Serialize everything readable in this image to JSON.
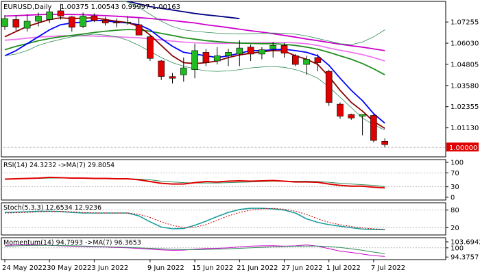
{
  "chart_data": [
    {
      "type": "candlestick",
      "panel": "price",
      "symbol_label": "EURUSD,Daily",
      "ohlc_label": "1.00375 1.00543 0.99997 1.00163",
      "current_price_label": "1.00000",
      "ylim": [
        0.9945,
        1.0845
      ],
      "y_ticks": [
        "1.07255",
        "1.06030",
        "1.04805",
        "1.03580",
        "1.02355",
        "1.01130",
        "1.00000"
      ],
      "candles": [
        {
          "o": 1.07,
          "h": 1.0765,
          "l": 1.068,
          "c": 1.0745
        },
        {
          "o": 1.074,
          "h": 1.0765,
          "l": 1.0675,
          "c": 1.0695
        },
        {
          "o": 1.069,
          "h": 1.077,
          "l": 1.067,
          "c": 1.073
        },
        {
          "o": 1.073,
          "h": 1.078,
          "l": 1.07,
          "c": 1.076
        },
        {
          "o": 1.074,
          "h": 1.08,
          "l": 1.072,
          "c": 1.0785
        },
        {
          "o": 1.079,
          "h": 1.083,
          "l": 1.074,
          "c": 1.076
        },
        {
          "o": 1.0755,
          "h": 1.076,
          "l": 1.067,
          "c": 1.0695
        },
        {
          "o": 1.07,
          "h": 1.078,
          "l": 1.069,
          "c": 1.076
        },
        {
          "o": 1.076,
          "h": 1.0775,
          "l": 1.0725,
          "c": 1.0735
        },
        {
          "o": 1.0735,
          "h": 1.0755,
          "l": 1.0705,
          "c": 1.072
        },
        {
          "o": 1.0725,
          "h": 1.0745,
          "l": 1.0695,
          "c": 1.072
        },
        {
          "o": 1.072,
          "h": 1.076,
          "l": 1.071,
          "c": 1.0725
        },
        {
          "o": 1.071,
          "h": 1.075,
          "l": 1.065,
          "c": 1.065
        },
        {
          "o": 1.064,
          "h": 1.0645,
          "l": 1.05,
          "c": 1.0515
        },
        {
          "o": 1.05,
          "h": 1.0505,
          "l": 1.039,
          "c": 1.041
        },
        {
          "o": 1.041,
          "h": 1.043,
          "l": 1.037,
          "c": 1.04
        },
        {
          "o": 1.042,
          "h": 1.052,
          "l": 1.038,
          "c": 1.046
        },
        {
          "o": 1.045,
          "h": 1.06,
          "l": 1.04,
          "c": 1.056
        },
        {
          "o": 1.055,
          "h": 1.057,
          "l": 1.047,
          "c": 1.049
        },
        {
          "o": 1.05,
          "h": 1.058,
          "l": 1.048,
          "c": 1.053
        },
        {
          "o": 1.053,
          "h": 1.057,
          "l": 1.047,
          "c": 1.055
        },
        {
          "o": 1.054,
          "h": 1.062,
          "l": 1.047,
          "c": 1.0575
        },
        {
          "o": 1.058,
          "h": 1.0595,
          "l": 1.05,
          "c": 1.054
        },
        {
          "o": 1.054,
          "h": 1.058,
          "l": 1.051,
          "c": 1.0565
        },
        {
          "o": 1.057,
          "h": 1.061,
          "l": 1.052,
          "c": 1.059
        },
        {
          "o": 1.059,
          "h": 1.0605,
          "l": 1.052,
          "c": 1.0545
        },
        {
          "o": 1.053,
          "h": 1.054,
          "l": 1.047,
          "c": 1.048
        },
        {
          "o": 1.048,
          "h": 1.053,
          "l": 1.042,
          "c": 1.051
        },
        {
          "o": 1.052,
          "h": 1.054,
          "l": 1.044,
          "c": 1.049
        },
        {
          "o": 1.044,
          "h": 1.045,
          "l": 1.024,
          "c": 1.026
        },
        {
          "o": 1.025,
          "h": 1.026,
          "l": 1.0165,
          "c": 1.018
        },
        {
          "o": 1.019,
          "h": 1.0195,
          "l": 1.016,
          "c": 1.017
        },
        {
          "o": 1.018,
          "h": 1.019,
          "l": 1.007,
          "c": 1.019
        },
        {
          "o": 1.0185,
          "h": 1.019,
          "l": 1.003,
          "c": 1.004
        },
        {
          "o": 1.0035,
          "h": 1.0052,
          "l": 0.99997,
          "c": 1.0016
        }
      ],
      "moving_averages": [
        {
          "color": "#000080",
          "values": [
            1.1,
            1.099,
            1.0978,
            1.0965,
            1.095,
            1.0935,
            1.092,
            1.0905,
            1.089,
            1.0875,
            1.086,
            1.0845,
            1.083,
            1.0815,
            1.0805,
            1.0795,
            1.0785,
            1.0775,
            1.0767,
            1.076,
            1.0753,
            1.0745
          ]
        },
        {
          "color": "#cc00cc",
          "values": [
            1.076,
            1.0762,
            1.0765,
            1.0768,
            1.077,
            1.077,
            1.0769,
            1.0768,
            1.0765,
            1.0762,
            1.0759,
            1.0755,
            1.0751,
            1.0746,
            1.074,
            1.0734,
            1.0727,
            1.072,
            1.071,
            1.0702,
            1.0693,
            1.0684,
            1.0675,
            1.0667,
            1.0658,
            1.0648,
            1.0638,
            1.0627,
            1.0618,
            1.0607,
            1.0597,
            1.0588,
            1.058,
            1.057,
            1.056
          ]
        },
        {
          "color": "#ee77ee",
          "values": [
            1.062,
            1.0625,
            1.0632,
            1.0638,
            1.0642,
            1.0645,
            1.0646,
            1.0646,
            1.0644,
            1.0642,
            1.064,
            1.0637,
            1.0634,
            1.0628,
            1.0622,
            1.0615,
            1.0609,
            1.0605,
            1.0603,
            1.0602,
            1.0602,
            1.0603,
            1.0604,
            1.0606,
            1.0607,
            1.0607,
            1.0605,
            1.06,
            1.059,
            1.0575,
            1.0562,
            1.055,
            1.0537,
            1.052,
            1.05
          ]
        },
        {
          "color": "#1f8f1f",
          "values": [
            1.0565,
            1.0585,
            1.06,
            1.0617,
            1.063,
            1.064,
            1.0648,
            1.0656,
            1.0665,
            1.0672,
            1.0678,
            1.0682,
            1.068,
            1.0672,
            1.066,
            1.0648,
            1.0635,
            1.0626,
            1.0618,
            1.0612,
            1.0607,
            1.0604,
            1.0602,
            1.06,
            1.06,
            1.0597,
            1.059,
            1.058,
            1.0568,
            1.055,
            1.053,
            1.051,
            1.0485,
            1.0455,
            1.042
          ]
        },
        {
          "color": "#0000ff",
          "values": [
            1.053,
            1.056,
            1.06,
            1.064,
            1.068,
            1.071,
            1.072,
            1.0725,
            1.0735,
            1.0733,
            1.0725,
            1.072,
            1.071,
            1.068,
            1.063,
            1.0585,
            1.055,
            1.054,
            1.053,
            1.052,
            1.053,
            1.0545,
            1.056,
            1.056,
            1.0565,
            1.0568,
            1.056,
            1.055,
            1.053,
            1.0475,
            1.04,
            1.033,
            1.027,
            1.0195,
            1.014
          ]
        },
        {
          "color": "#8b0000",
          "values": [
            1.064,
            1.067,
            1.07,
            1.072,
            1.074,
            1.075,
            1.0745,
            1.0748,
            1.075,
            1.074,
            1.073,
            1.0722,
            1.07,
            1.065,
            1.059,
            1.053,
            1.049,
            1.0485,
            1.049,
            1.05,
            1.052,
            1.0535,
            1.0545,
            1.0553,
            1.056,
            1.0558,
            1.053,
            1.051,
            1.048,
            1.041,
            1.033,
            1.026,
            1.021,
            1.015,
            1.011
          ]
        },
        {
          "color": "#2e8b57",
          "values": [
            1.089,
            1.09,
            1.092,
            1.0935,
            1.094,
            1.093,
            1.091,
            1.09,
            1.089,
            1.087,
            1.086,
            1.084,
            1.081,
            1.077,
            1.073,
            1.07,
            1.068,
            1.0672,
            1.0666,
            1.0661,
            1.0658,
            1.0656,
            1.0658,
            1.066,
            1.0662,
            1.066,
            1.0655,
            1.0645,
            1.063,
            1.0615,
            1.06,
            1.0595,
            1.061,
            1.064,
            1.068
          ]
        },
        {
          "color": "#2e8b57",
          "values": [
            1.053,
            1.054,
            1.056,
            1.059,
            1.061,
            1.0625,
            1.064,
            1.0648,
            1.0655,
            1.065,
            1.064,
            1.062,
            1.059,
            1.0555,
            1.052,
            1.049,
            1.047,
            1.0455,
            1.0442,
            1.044,
            1.0442,
            1.045,
            1.046,
            1.0465,
            1.0468,
            1.0463,
            1.045,
            1.043,
            1.04,
            1.035,
            1.029,
            1.023,
            1.017,
            1.013,
            1.01
          ]
        }
      ]
    },
    {
      "type": "line",
      "panel": "rsi",
      "label": "RSI(14) 24.3232 ->MA(7) 29.8054",
      "ylim": [
        -8,
        108
      ],
      "y_ticks": [
        100,
        70,
        30,
        0
      ],
      "series": [
        {
          "color": "#e00000",
          "values": [
            52,
            53,
            54,
            55,
            57,
            56,
            55,
            55,
            54,
            54,
            53,
            53,
            50,
            45,
            40,
            38,
            38,
            42,
            45,
            44,
            46,
            47,
            46,
            47,
            48,
            46,
            44,
            44,
            43,
            38,
            34,
            32,
            32,
            29,
            27
          ]
        },
        {
          "color": "#2e8b57",
          "values": [
            52,
            53,
            54,
            54,
            55,
            55,
            55,
            55,
            54,
            54,
            54,
            53,
            52,
            50,
            46,
            44,
            42,
            41,
            41,
            41,
            42,
            43,
            44,
            45,
            46,
            46,
            46,
            46,
            45,
            43,
            40,
            38,
            36,
            34,
            31
          ]
        }
      ]
    },
    {
      "type": "line",
      "panel": "stochastic",
      "label": "Stoch(5,3,3) 12.6534 12.9236",
      "ylim": [
        -5,
        105
      ],
      "y_ticks": [
        80,
        20
      ],
      "series": [
        {
          "color": "#1a9c9c",
          "values": [
            72,
            73,
            74,
            76,
            76,
            75,
            72,
            70,
            70,
            70,
            70,
            70,
            60,
            40,
            22,
            16,
            17,
            28,
            42,
            58,
            72,
            82,
            86,
            86,
            84,
            80,
            70,
            50,
            38,
            30,
            25,
            20,
            15,
            14,
            13
          ]
        },
        {
          "color": "#cc0000",
          "dashed": true,
          "values": [
            70,
            71,
            72,
            74,
            75,
            75,
            74,
            72,
            70,
            70,
            70,
            70,
            66,
            55,
            40,
            28,
            20,
            22,
            30,
            45,
            60,
            72,
            80,
            84,
            86,
            83,
            76,
            65,
            50,
            38,
            30,
            24,
            19,
            16,
            14
          ]
        }
      ]
    },
    {
      "type": "line",
      "panel": "momentum",
      "label": "Momentum(14) 94.7993 ->MA(7) 96.3653",
      "ylim": [
        92.8,
        106.2
      ],
      "y_ticks": [
        "103.6942",
        "100",
        "94.3757"
      ],
      "series": [
        {
          "color": "#cc00cc",
          "values": [
            101.5,
            101.8,
            102.0,
            101.8,
            101.5,
            101.2,
            101.0,
            100.8,
            100.6,
            100.5,
            100.2,
            100.0,
            99.6,
            99.2,
            98.8,
            98.5,
            98.6,
            99.2,
            99.6,
            99.7,
            100.0,
            100.6,
            101.0,
            101.2,
            101.3,
            101.0,
            101.2,
            101.8,
            101.0,
            99.5,
            98.0,
            97.2,
            96.2,
            95.2,
            94.8
          ]
        },
        {
          "color": "#2e8b57",
          "values": [
            101.0,
            101.2,
            101.4,
            101.5,
            101.5,
            101.4,
            101.3,
            101.1,
            100.9,
            100.7,
            100.5,
            100.3,
            100.0,
            99.7,
            99.4,
            99.1,
            98.9,
            98.9,
            99.0,
            99.2,
            99.4,
            99.7,
            100.0,
            100.3,
            100.6,
            100.8,
            101.0,
            101.1,
            101.1,
            100.8,
            100.2,
            99.4,
            98.5,
            97.4,
            96.4
          ]
        }
      ]
    },
    {
      "type": "axis",
      "panel": "dates",
      "x_labels": [
        {
          "index": 0,
          "text": "24 May 2022"
        },
        {
          "index": 4,
          "text": "30 May 2022"
        },
        {
          "index": 8,
          "text": "3 Jun 2022"
        },
        {
          "index": 13,
          "text": "9 Jun 2022"
        },
        {
          "index": 17,
          "text": "15 Jun 2022"
        },
        {
          "index": 21,
          "text": "21 Jun 2022"
        },
        {
          "index": 25,
          "text": "27 Jun 2022"
        },
        {
          "index": 29,
          "text": "1 Jul 2022"
        },
        {
          "index": 33,
          "text": "7 Jul 2022"
        }
      ]
    }
  ]
}
